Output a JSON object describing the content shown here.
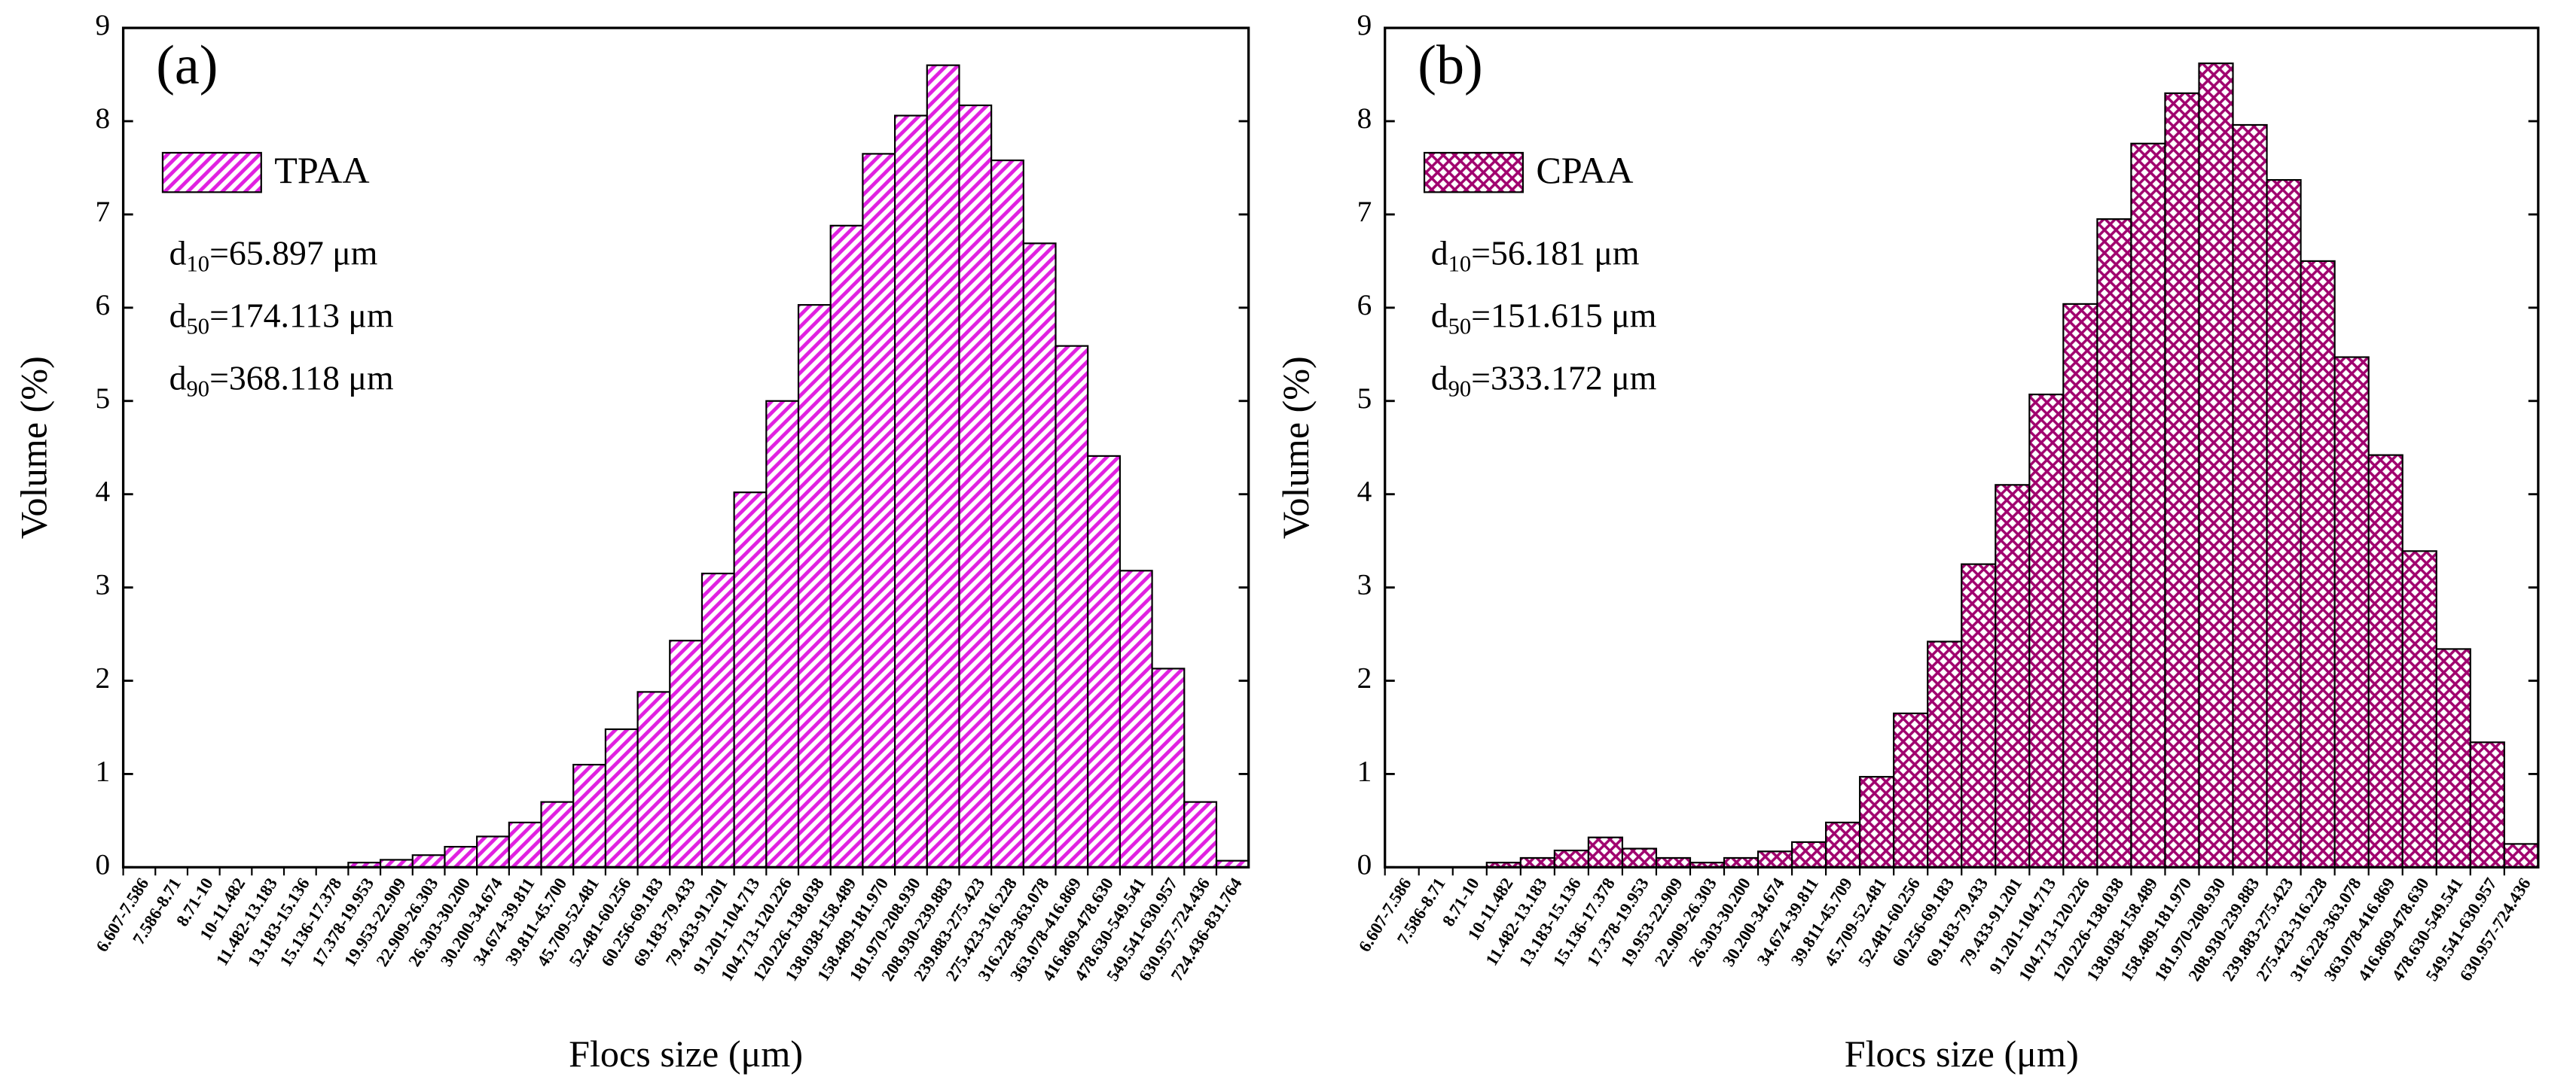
{
  "chart_data": [
    {
      "type": "bar",
      "panel_label": "(a)",
      "xlabel": "Flocs size (μm)",
      "ylabel": "Volume (%)",
      "hatch": "diagonal",
      "categories": [
        "6.607-7.586",
        "7.586-8.71",
        "8.71-10",
        "10-11.482",
        "11.482-13.183",
        "13.183-15.136",
        "15.136-17.378",
        "17.378-19.953",
        "19.953-22.909",
        "22.909-26.303",
        "26.303-30.200",
        "30.200-34.674",
        "34.674-39.811",
        "39.811-45.700",
        "45.709-52.481",
        "52.481-60.256",
        "60.256-69.183",
        "69.183-79.433",
        "79.433-91.201",
        "91.201-104.713",
        "104.713-120.226",
        "120.226-138.038",
        "138.038-158.489",
        "158.489-181.970",
        "181.970-208.930",
        "208.930-239.883",
        "239.883-275.423",
        "275.423-316.228",
        "316.228-363.078",
        "363.078-416.869",
        "416.869-478.630",
        "478.630-549.541",
        "549.541-630.957",
        "630.957-724.436",
        "724.436-831.764"
      ],
      "series": [
        {
          "name": "TPAA",
          "color": "#e020e0",
          "values": [
            0,
            0,
            0,
            0,
            0,
            0,
            0,
            0.05,
            0.08,
            0.13,
            0.22,
            0.33,
            0.48,
            0.7,
            1.1,
            1.48,
            1.88,
            2.43,
            3.15,
            4.02,
            5.0,
            6.03,
            6.88,
            7.65,
            8.06,
            8.6,
            8.17,
            7.58,
            6.69,
            5.59,
            4.41,
            3.18,
            2.13,
            0.7,
            0.07
          ]
        }
      ],
      "ylim": [
        0,
        9
      ],
      "yticks": [
        0,
        1,
        2,
        3,
        4,
        5,
        6,
        7,
        8,
        9
      ],
      "annotations": [
        {
          "base": "d",
          "sub": "10",
          "text": "=65.897 μm"
        },
        {
          "base": "d",
          "sub": "50",
          "text": "=174.113 μm"
        },
        {
          "base": "d",
          "sub": "90",
          "text": "=368.118 μm"
        }
      ]
    },
    {
      "type": "bar",
      "panel_label": "(b)",
      "xlabel": "Flocs size (μm)",
      "ylabel": "Volume (%)",
      "hatch": "cross",
      "categories": [
        "6.607-7.586",
        "7.586-8.71",
        "8.71-10",
        "10-11.482",
        "11.482-13.183",
        "13.183-15.136",
        "15.136-17.378",
        "17.378-19.953",
        "19.953-22.909",
        "22.909-26.303",
        "26.303-30.200",
        "30.200-34.674",
        "34.674-39.811",
        "39.811-45.709",
        "45.709-52.481",
        "52.481-60.256",
        "60.256-69.183",
        "69.183-79.433",
        "79.433-91.201",
        "91.201-104.713",
        "104.713-120.226",
        "120.226-138.038",
        "138.038-158.489",
        "158.489-181.970",
        "181.970-208.930",
        "208.930-239.883",
        "239.883-275.423",
        "275.423-316.228",
        "316.228-363.078",
        "363.078-416.869",
        "416.869-478.630",
        "478.630-549.541",
        "549.541-630.957",
        "630.957-724.436"
      ],
      "series": [
        {
          "name": "CPAA",
          "color": "#a0006e",
          "values": [
            0,
            0,
            0,
            0.05,
            0.1,
            0.18,
            0.32,
            0.2,
            0.1,
            0.05,
            0.1,
            0.17,
            0.27,
            0.48,
            0.97,
            1.65,
            2.42,
            3.25,
            4.1,
            5.07,
            6.04,
            6.95,
            7.76,
            8.3,
            8.62,
            7.96,
            7.37,
            6.5,
            5.47,
            4.42,
            3.39,
            2.34,
            1.34,
            0.25
          ]
        }
      ],
      "ylim": [
        0,
        9
      ],
      "yticks": [
        0,
        1,
        2,
        3,
        4,
        5,
        6,
        7,
        8,
        9
      ],
      "annotations": [
        {
          "base": "d",
          "sub": "10",
          "text": "=56.181 μm"
        },
        {
          "base": "d",
          "sub": "50",
          "text": "=151.615 μm"
        },
        {
          "base": "d",
          "sub": "90",
          "text": "=333.172 μm"
        }
      ]
    }
  ]
}
